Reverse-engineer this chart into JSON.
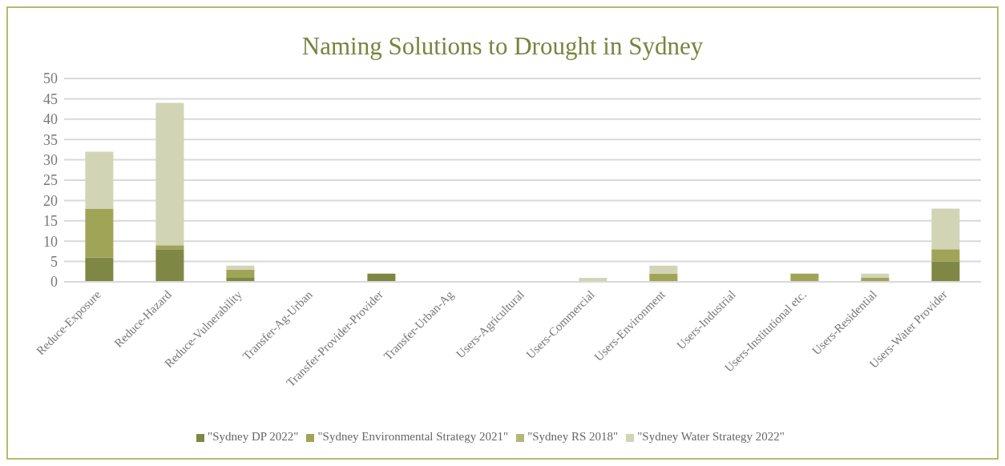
{
  "chart_data": {
    "type": "bar",
    "title": "Naming Solutions to Drought in Sydney",
    "categories": [
      "Reduce-Exposure",
      "Reduce-Hazard",
      "Reduce-Vulnerability",
      "Transfer-Ag-Urban",
      "Transfer-Provider-Provider",
      "Transfer-Urban-Ag",
      "Users-Agricultural",
      "Users-Commercial",
      "Users-Environment",
      "Users-Industrial",
      "Users-Institutional etc.",
      "Users-Residential",
      "Users-Water Provider"
    ],
    "stacked": true,
    "series": [
      {
        "name": "\"Sydney DP 2022\"",
        "color": "#7f8744",
        "values": [
          6,
          8,
          1,
          0,
          2,
          0,
          0,
          0,
          0,
          0,
          0,
          0,
          5
        ]
      },
      {
        "name": "\"Sydney Environmental Strategy 2021\"",
        "color": "#a0a456",
        "values": [
          12,
          1,
          2,
          0,
          0,
          0,
          0,
          0,
          2,
          0,
          2,
          1,
          3
        ]
      },
      {
        "name": "\"Sydney RS 2018\"",
        "color": "#b4b77c",
        "values": [
          0,
          0,
          0,
          0,
          0,
          0,
          0,
          0,
          0,
          0,
          0,
          0,
          0
        ]
      },
      {
        "name": "\"Sydney Water Strategy 2022\"",
        "color": "#d1d5b6",
        "values": [
          14,
          35,
          1,
          0,
          0,
          0,
          0,
          1,
          2,
          0,
          0,
          1,
          10
        ]
      }
    ],
    "ylim": [
      0,
      50
    ],
    "yticks": [
      0,
      5,
      10,
      15,
      20,
      25,
      30,
      35,
      40,
      45,
      50
    ],
    "grid": "y",
    "legend": "bottom"
  }
}
